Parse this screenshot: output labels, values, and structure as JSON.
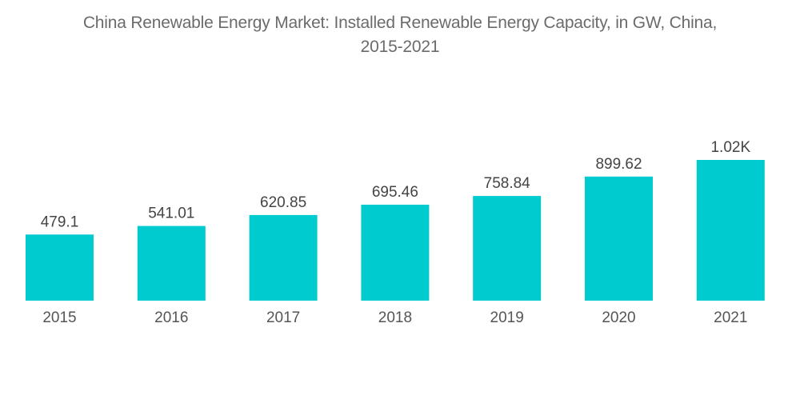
{
  "chart_data": {
    "type": "bar",
    "title": "China Renewable Energy Market: Installed Renewable Energy Capacity, in GW, China, 2015-2021",
    "title_lines": [
      "China Renewable Energy Market: Installed Renewable Energy Capacity, in GW, China,",
      "2015-2021"
    ],
    "xlabel": "",
    "ylabel": "",
    "categories": [
      "2015",
      "2016",
      "2017",
      "2018",
      "2019",
      "2020",
      "2021"
    ],
    "values": [
      479.1,
      541.01,
      620.85,
      695.46,
      758.84,
      899.62,
      1020
    ],
    "value_labels": [
      "479.1",
      "541.01",
      "620.85",
      "695.46",
      "758.84",
      "899.62",
      "1.02K"
    ],
    "ylim": [
      0,
      1020
    ],
    "grid": false,
    "legend": "none",
    "bar_color": "#00CCCF"
  }
}
